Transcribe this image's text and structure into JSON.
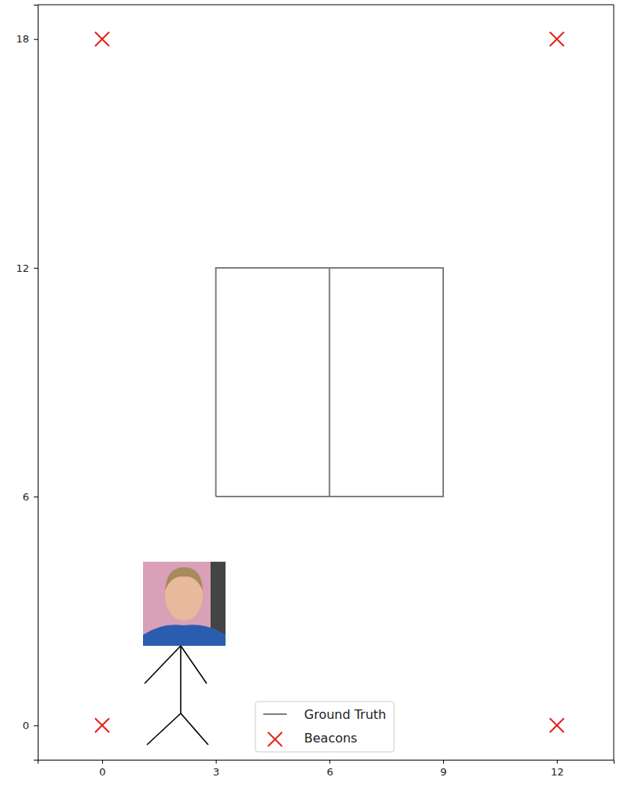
{
  "chart_data": {
    "type": "line",
    "xlim": [
      -1.7,
      13.5
    ],
    "xticks": [
      0,
      3,
      6,
      9,
      12
    ],
    "ylim": [
      -0.9,
      18.9
    ],
    "yticks": [
      0,
      6,
      12,
      18
    ],
    "legend": "bottom",
    "series": [
      {
        "name": "Ground Truth",
        "type": "line",
        "color": "#7f7f7f",
        "line_style": "solid",
        "x": [
          3,
          3,
          9,
          9,
          3,
          null,
          6,
          6
        ],
        "values": [
          6,
          12,
          12,
          6,
          6,
          null,
          6,
          12
        ]
      },
      {
        "name": "Beacons",
        "type": "scatter",
        "color": "#e4211c",
        "marker": "x",
        "x": [
          0,
          12,
          0,
          12
        ],
        "values": [
          18,
          18,
          0,
          0
        ]
      }
    ]
  }
}
